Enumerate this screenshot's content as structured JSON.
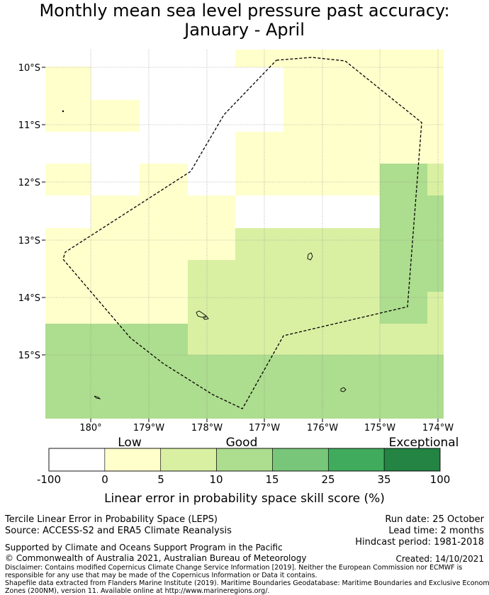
{
  "title": {
    "line1": "Monthly mean sea level pressure past accuracy:",
    "line2": "January - April"
  },
  "map": {
    "lat_ticks": [
      "10°S",
      "11°S",
      "12°S",
      "13°S",
      "14°S",
      "15°S"
    ],
    "lon_ticks": [
      "180°",
      "179°W",
      "178°W",
      "177°W",
      "176°W",
      "175°W",
      "174°W"
    ],
    "category_colors": {
      "none": "#ffffff",
      "low": "#ffffcc",
      "light_good": "#d9f0a3",
      "good": "#addd8e",
      "better": "#78c679",
      "very_good": "#41ab5d",
      "exceptional": "#238443"
    }
  },
  "legend": {
    "category_labels": [
      "Low",
      "Good",
      "Exceptional"
    ],
    "tick_labels": [
      "-100",
      "0",
      "5",
      "10",
      "15",
      "25",
      "35",
      "100"
    ],
    "colors": [
      "#ffffff",
      "#ffffcc",
      "#d9f0a3",
      "#addd8e",
      "#78c679",
      "#41ab5d",
      "#238443"
    ],
    "axis_label": "Linear error in probability space skill score (%)"
  },
  "footer": {
    "product": "Tercile Linear Error in Probability Space (LEPS)",
    "source": "Source: ACCESS-S2 and ERA5 Climate Reanalysis",
    "run_date": "Run date: 25 October",
    "lead_time": "Lead time: 2 months",
    "hindcast": "Hindcast period: 1981-2018",
    "supported": "Supported by Climate and Oceans Support Program in the Pacific",
    "copyright": "© Commonwealth of Australia 2021, Australian Bureau of Meteorology",
    "created": "Created: 14/10/2021",
    "disclaimer1": "Disclaimer: Contains modified Copernicus Climate Change Service Information [2019]. Neither the European Commission nor ECMWF is",
    "disclaimer2": "responsible for any use that may be made of the Copernicus Information or Data it contains.",
    "disclaimer3": "Shapefile data extracted from Flanders Marine Institute (2019). Maritime Boundaries Geodatabase: Maritime Boundaries and Exclusive Economic",
    "disclaimer4": "Zones (200NM), version 11. Available online at http://www.marineregions.org/."
  }
}
